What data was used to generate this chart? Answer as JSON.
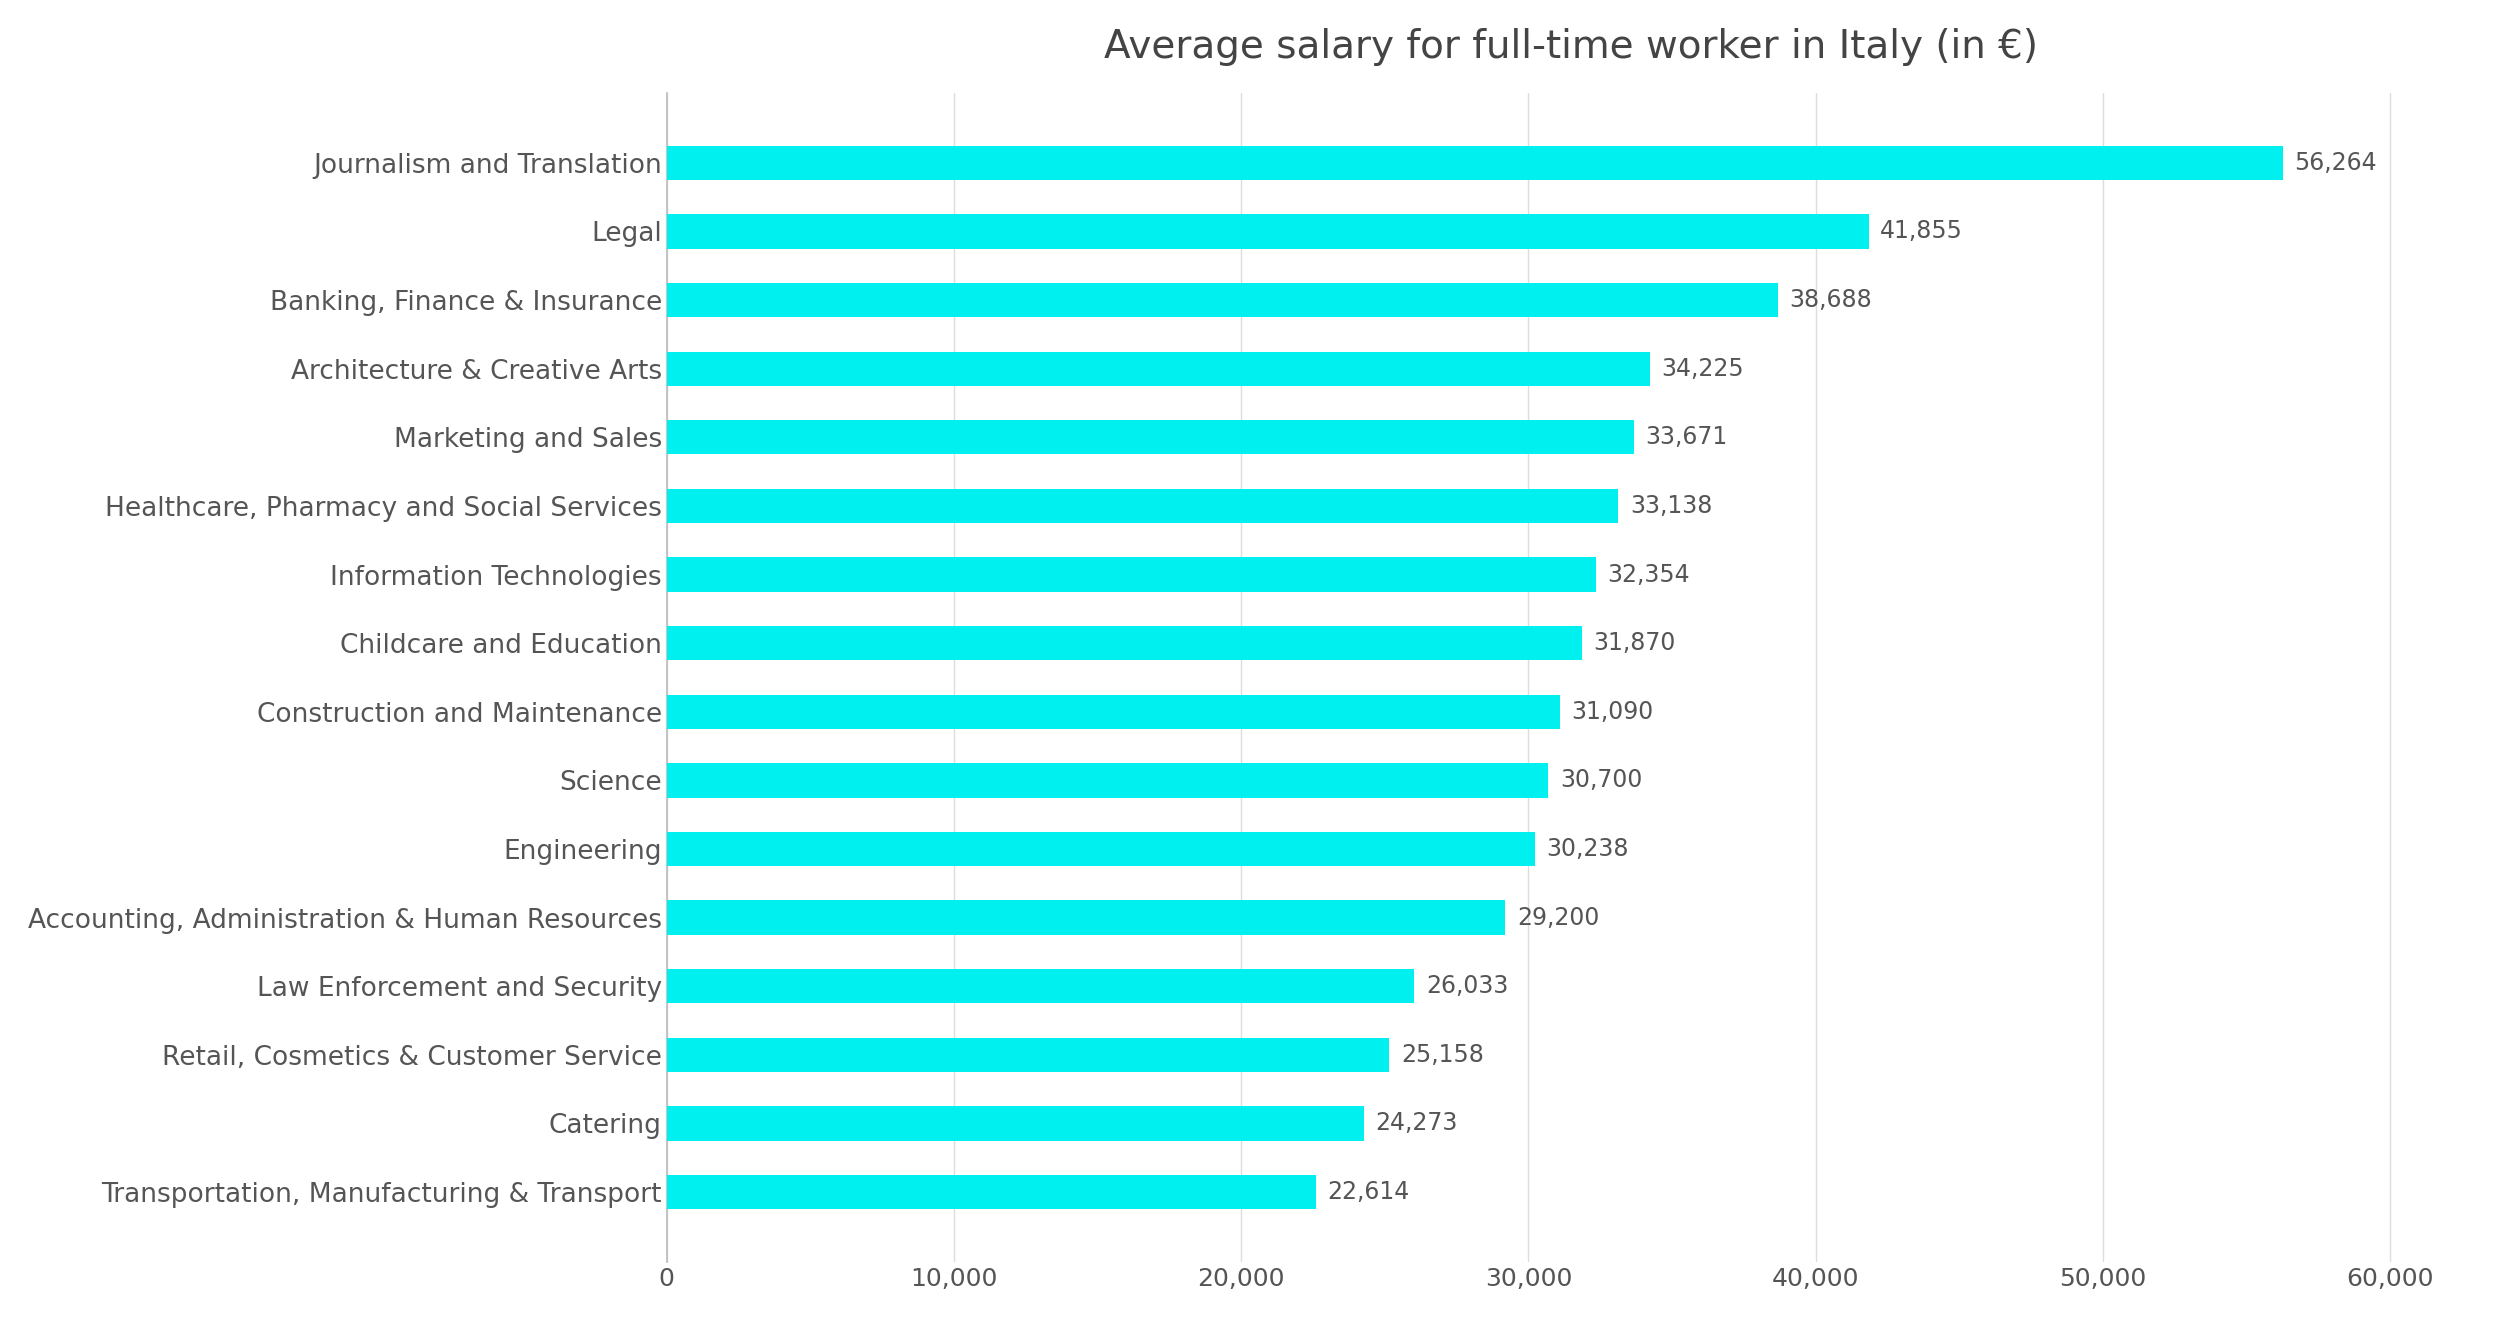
{
  "title": "Average salary for full-time worker in Italy (in €)",
  "categories": [
    "Transportation, Manufacturing & Transport",
    "Catering",
    "Retail, Cosmetics & Customer Service",
    "Law Enforcement and Security",
    "Accounting, Administration & Human Resources",
    "Engineering",
    "Science",
    "Construction and Maintenance",
    "Childcare and Education",
    "Information Technologies",
    "Healthcare, Pharmacy and Social Services",
    "Marketing and Sales",
    "Architecture & Creative Arts",
    "Banking, Finance & Insurance",
    "Legal",
    "Journalism and Translation"
  ],
  "values": [
    22614,
    24273,
    25158,
    26033,
    29200,
    30238,
    30700,
    31090,
    31870,
    32354,
    33138,
    33671,
    34225,
    38688,
    41855,
    56264
  ],
  "bar_color": "#00EFEF",
  "background_color": "#FFFFFF",
  "label_color": "#555555",
  "title_color": "#444444",
  "xlim": [
    0,
    60000
  ],
  "xtick_values": [
    0,
    10000,
    20000,
    30000,
    40000,
    50000,
    60000
  ],
  "title_fontsize": 28,
  "label_fontsize": 19,
  "tick_fontsize": 18,
  "value_fontsize": 17,
  "bar_height": 0.5
}
